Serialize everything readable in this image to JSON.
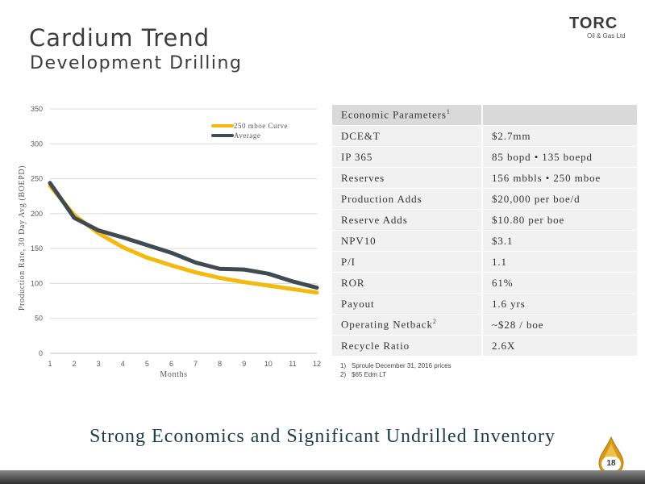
{
  "title": "Cardium Trend",
  "subtitle": "Development Drilling",
  "logo": {
    "word": "TORC",
    "sub": "Oil & Gas Ltd"
  },
  "chart_data": {
    "type": "line",
    "xlabel": "Months",
    "ylabel": "Production Rate, 30 Day Avg (BOEPD)",
    "x": [
      1,
      2,
      3,
      4,
      5,
      6,
      7,
      8,
      9,
      10,
      11,
      12
    ],
    "xlim": [
      1,
      12
    ],
    "ylim": [
      0,
      350
    ],
    "yticks": [
      0,
      50,
      100,
      150,
      200,
      250,
      300,
      350
    ],
    "grid": "horizontal",
    "legend": "top-right",
    "series": [
      {
        "name": "250 mboe Curve",
        "color": "#f2b90f",
        "values": [
          240,
          198,
          172,
          152,
          137,
          126,
          116,
          108,
          102,
          97,
          92,
          87
        ]
      },
      {
        "name": "Average",
        "color": "#3f4a52",
        "values": [
          244,
          194,
          176,
          166,
          155,
          144,
          130,
          121,
          120,
          114,
          103,
          94
        ]
      }
    ]
  },
  "table": {
    "header": "Economic Parameters",
    "header_sup": "1",
    "rows": [
      {
        "label": "DCE&T",
        "sup": "",
        "value": "$2.7mm"
      },
      {
        "label": "IP 365",
        "sup": "",
        "value": "85 bopd  •  135 boepd"
      },
      {
        "label": "Reserves",
        "sup": "",
        "value": "156 mbbls • 250 mboe"
      },
      {
        "label": "Production Adds",
        "sup": "",
        "value": "$20,000 per boe/d"
      },
      {
        "label": "Reserve Adds",
        "sup": "",
        "value": "$10.80 per boe"
      },
      {
        "label": "NPV10",
        "sup": "",
        "value": "$3.1"
      },
      {
        "label": "P/I",
        "sup": "",
        "value": "1.1"
      },
      {
        "label": "ROR",
        "sup": "",
        "value": "61%"
      },
      {
        "label": "Payout",
        "sup": "",
        "value": "1.6 yrs"
      },
      {
        "label": "Operating Netback",
        "sup": "2",
        "value": "~$28 / boe"
      },
      {
        "label": "Recycle Ratio",
        "sup": "",
        "value": "2.6X"
      }
    ]
  },
  "footnotes": [
    {
      "n": "1)",
      "text": "Sproule December 31, 2016 prices"
    },
    {
      "n": "2)",
      "text": "$65 Edm LT"
    }
  ],
  "tagline": "Strong Economics and Significant Undrilled Inventory",
  "page_number": "18"
}
